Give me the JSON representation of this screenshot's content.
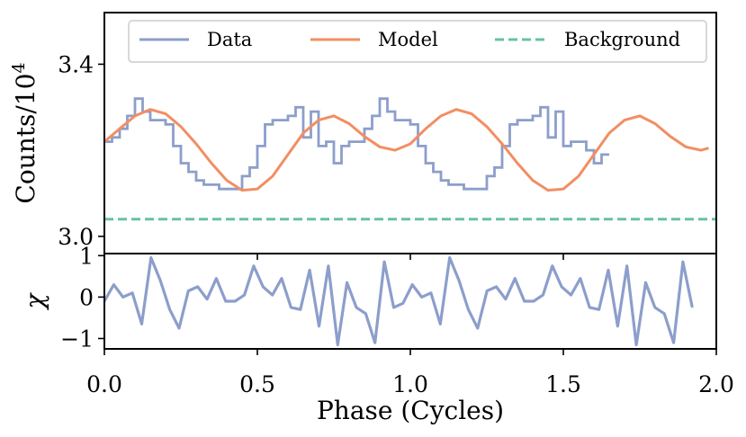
{
  "chart_data": [
    {
      "type": "line",
      "panel": "top",
      "ylabel": "Counts/10",
      "ylabel_exponent": "4",
      "ylim": [
        2.96,
        3.52
      ],
      "xlim": [
        0.0,
        2.0
      ],
      "yticks": [
        {
          "value": 3.0,
          "label": "3.0"
        },
        {
          "value": 3.4,
          "label": "3.4"
        }
      ],
      "legend": {
        "placement": "top",
        "entries": [
          {
            "key": "data",
            "label": "Data",
            "color": "#8c9ecb",
            "style": "solid"
          },
          {
            "key": "model",
            "label": "Model",
            "color": "#f28e62",
            "style": "solid"
          },
          {
            "key": "background",
            "label": "Background",
            "color": "#66c2a5",
            "style": "dashed"
          }
        ]
      },
      "series": [
        {
          "name": "Data",
          "style": "steps",
          "color": "#8c9ecb",
          "bin_width": 0.025,
          "x_start": 0.0,
          "values": [
            3.22,
            3.23,
            3.25,
            3.28,
            3.32,
            3.29,
            3.27,
            3.27,
            3.26,
            3.21,
            3.17,
            3.15,
            3.13,
            3.12,
            3.12,
            3.11,
            3.11,
            3.11,
            3.14,
            3.16,
            3.21,
            3.26,
            3.27,
            3.27,
            3.28,
            3.3,
            3.23,
            3.29,
            3.21,
            3.22,
            3.17,
            3.21,
            3.22,
            3.22,
            3.25,
            3.28,
            3.32,
            3.29,
            3.27,
            3.27,
            3.26,
            3.21,
            3.17,
            3.15,
            3.13,
            3.12,
            3.12,
            3.11,
            3.11,
            3.11,
            3.14,
            3.16,
            3.21,
            3.26,
            3.27,
            3.27,
            3.28,
            3.3,
            3.23,
            3.29,
            3.21,
            3.22,
            3.22,
            3.2,
            3.17,
            3.19
          ]
        },
        {
          "name": "Model",
          "style": "smooth",
          "color": "#f28e62",
          "x": [
            0.0,
            0.05,
            0.1,
            0.15,
            0.2,
            0.25,
            0.3,
            0.35,
            0.4,
            0.45,
            0.5,
            0.55,
            0.6,
            0.65,
            0.7,
            0.75,
            0.8,
            0.85,
            0.9,
            0.95,
            1.0,
            1.05,
            1.1,
            1.15,
            1.2,
            1.25,
            1.3,
            1.35,
            1.4,
            1.45,
            1.5,
            1.55,
            1.6,
            1.65,
            1.7,
            1.75,
            1.8,
            1.85,
            1.9,
            1.95,
            1.975
          ],
          "values": [
            3.22,
            3.25,
            3.28,
            3.295,
            3.285,
            3.255,
            3.215,
            3.17,
            3.13,
            3.107,
            3.11,
            3.14,
            3.19,
            3.24,
            3.27,
            3.28,
            3.262,
            3.232,
            3.208,
            3.2,
            3.215,
            3.25,
            3.28,
            3.295,
            3.285,
            3.255,
            3.215,
            3.17,
            3.13,
            3.107,
            3.11,
            3.14,
            3.19,
            3.24,
            3.27,
            3.28,
            3.262,
            3.232,
            3.208,
            3.2,
            3.205
          ]
        },
        {
          "name": "Background",
          "style": "dashed",
          "color": "#66c2a5",
          "x": [
            0.0,
            2.0
          ],
          "values": [
            3.04,
            3.04
          ]
        }
      ]
    },
    {
      "type": "line",
      "panel": "bottom",
      "xlabel": "Phase (Cycles)",
      "ylabel": "χ",
      "ylim": [
        -1.25,
        1.05
      ],
      "xlim": [
        0.0,
        2.0
      ],
      "xticks": [
        {
          "value": 0.0,
          "label": "0.0"
        },
        {
          "value": 0.5,
          "label": "0.5"
        },
        {
          "value": 1.0,
          "label": "1.0"
        },
        {
          "value": 1.5,
          "label": "1.5"
        },
        {
          "value": 2.0,
          "label": "2.0"
        }
      ],
      "yticks": [
        {
          "value": 1,
          "label": "1"
        },
        {
          "value": 0,
          "label": "0"
        },
        {
          "value": -1,
          "label": "−1"
        }
      ],
      "series": [
        {
          "name": "chi",
          "color": "#8c9ecb",
          "x_start": 0.0,
          "x_step": 0.0305,
          "values": [
            -0.1,
            0.3,
            0.0,
            0.1,
            -0.65,
            0.95,
            0.4,
            -0.3,
            -0.75,
            0.15,
            0.25,
            -0.05,
            0.45,
            -0.1,
            -0.1,
            0.05,
            0.75,
            0.25,
            0.05,
            0.45,
            -0.25,
            -0.3,
            0.65,
            -0.7,
            0.75,
            -1.15,
            0.35,
            -0.25,
            -0.4,
            -1.1,
            0.85,
            -0.25,
            -0.15,
            0.3,
            0.0,
            0.1,
            -0.65,
            0.95,
            0.4,
            -0.3,
            -0.75,
            0.15,
            0.25,
            -0.05,
            0.45,
            -0.1,
            -0.1,
            0.05,
            0.75,
            0.25,
            0.05,
            0.45,
            -0.25,
            -0.3,
            0.65,
            -0.7,
            0.75,
            -1.15,
            0.35,
            -0.25,
            -0.4,
            -1.1,
            0.85,
            -0.25
          ]
        }
      ]
    }
  ]
}
